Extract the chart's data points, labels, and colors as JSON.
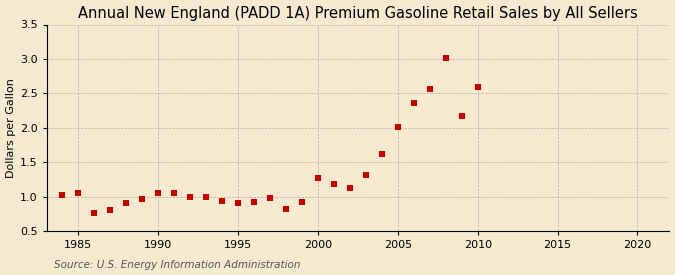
{
  "title": "Annual New England (PADD 1A) Premium Gasoline Retail Sales by All Sellers",
  "ylabel": "Dollars per Gallon",
  "source": "Source: U.S. Energy Information Administration",
  "background_color": "#f5e9d0",
  "plot_background_color": "#f5e9d0",
  "marker_color": "#cc0000",
  "years": [
    1984,
    1985,
    1986,
    1987,
    1988,
    1989,
    1990,
    1991,
    1992,
    1993,
    1994,
    1995,
    1996,
    1997,
    1998,
    1999,
    2000,
    2001,
    2002,
    2003,
    2004,
    2005,
    2006,
    2007,
    2008,
    2009,
    2010
  ],
  "values": [
    1.02,
    1.06,
    0.77,
    0.81,
    0.91,
    0.97,
    1.06,
    1.05,
    1.0,
    0.99,
    0.94,
    0.91,
    0.93,
    0.98,
    0.82,
    0.92,
    1.27,
    1.19,
    1.13,
    1.31,
    1.62,
    2.01,
    2.36,
    2.57,
    3.02,
    2.17,
    2.59
  ],
  "xlim": [
    1983,
    2022
  ],
  "ylim": [
    0.5,
    3.5
  ],
  "xticks": [
    1985,
    1990,
    1995,
    2000,
    2005,
    2010,
    2015,
    2020
  ],
  "yticks": [
    0.5,
    1.0,
    1.5,
    2.0,
    2.5,
    3.0,
    3.5
  ],
  "title_fontsize": 10.5,
  "label_fontsize": 8,
  "source_fontsize": 7.5,
  "marker_size": 4
}
